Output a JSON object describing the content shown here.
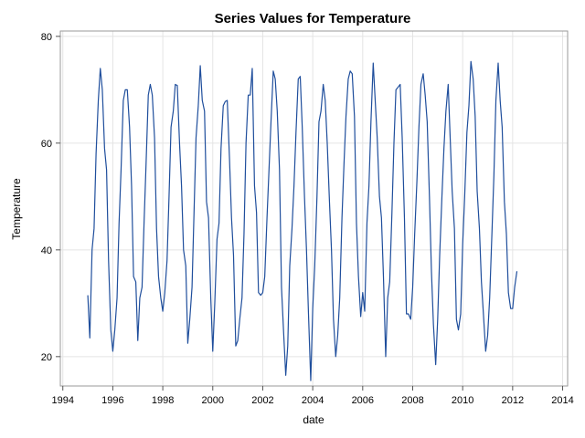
{
  "chart_data": {
    "type": "line",
    "title": "Series Values for Temperature",
    "xlabel": "date",
    "ylabel": "Temperature",
    "xlim": [
      1993.9,
      2014.2
    ],
    "ylim": [
      14.5,
      81
    ],
    "x_ticks": [
      "1994",
      "1996",
      "1998",
      "2000",
      "2002",
      "2004",
      "2006",
      "2008",
      "2010",
      "2012",
      "2014"
    ],
    "y_ticks": [
      "20",
      "40",
      "60",
      "80"
    ],
    "grid": true,
    "line_color": "#1f4e9c",
    "series": [
      {
        "x": [
          1995.0,
          1995.08,
          1995.17,
          1995.25,
          1995.33,
          1995.42,
          1995.5,
          1995.58,
          1995.67,
          1995.75,
          1995.83,
          1995.92,
          1996.0,
          1996.08,
          1996.17,
          1996.25,
          1996.33,
          1996.42,
          1996.5,
          1996.58,
          1996.67,
          1996.75,
          1996.83,
          1996.92,
          1997.0,
          1997.08,
          1997.17,
          1997.25,
          1997.33,
          1997.42,
          1997.5,
          1997.58,
          1997.67,
          1997.75,
          1997.83,
          1997.92,
          1998.0,
          1998.08,
          1998.17,
          1998.25,
          1998.33,
          1998.42,
          1998.5,
          1998.58,
          1998.67,
          1998.75,
          1998.83,
          1998.92,
          1999.0,
          1999.08,
          1999.17,
          1999.25,
          1999.33,
          1999.42,
          1999.5,
          1999.58,
          1999.67,
          1999.75,
          1999.83,
          1999.92,
          2000.0,
          2000.08,
          2000.17,
          2000.25,
          2000.33,
          2000.42,
          2000.5,
          2000.58,
          2000.67,
          2000.75,
          2000.83,
          2000.92,
          2001.0,
          2001.08,
          2001.17,
          2001.25,
          2001.33,
          2001.42,
          2001.5,
          2001.58,
          2001.67,
          2001.75,
          2001.83,
          2001.92,
          2002.0,
          2002.08,
          2002.17,
          2002.25,
          2002.33,
          2002.42,
          2002.5,
          2002.58,
          2002.67,
          2002.75,
          2002.83,
          2002.92,
          2003.0,
          2003.08,
          2003.17,
          2003.25,
          2003.33,
          2003.42,
          2003.5,
          2003.58,
          2003.67,
          2003.75,
          2003.83,
          2003.92,
          2004.0,
          2004.08,
          2004.17,
          2004.25,
          2004.33,
          2004.42,
          2004.5,
          2004.58,
          2004.67,
          2004.75,
          2004.83,
          2004.92,
          2005.0,
          2005.08,
          2005.17,
          2005.25,
          2005.33,
          2005.42,
          2005.5,
          2005.58,
          2005.67,
          2005.75,
          2005.83,
          2005.92,
          2006.0,
          2006.08,
          2006.17,
          2006.25,
          2006.33,
          2006.42,
          2006.5,
          2006.58,
          2006.67,
          2006.75,
          2006.83,
          2006.92,
          2007.0,
          2007.08,
          2007.17,
          2007.25,
          2007.33,
          2007.42,
          2007.5,
          2007.58,
          2007.67,
          2007.75,
          2007.83,
          2007.92,
          2008.0,
          2008.08,
          2008.17,
          2008.25,
          2008.33,
          2008.42,
          2008.5,
          2008.58,
          2008.67,
          2008.75,
          2008.83,
          2008.92,
          2009.0,
          2009.08,
          2009.17,
          2009.25,
          2009.33,
          2009.42,
          2009.5,
          2009.58,
          2009.67,
          2009.75,
          2009.83,
          2009.92,
          2010.0,
          2010.08,
          2010.17,
          2010.25,
          2010.33,
          2010.42,
          2010.5,
          2010.58,
          2010.67,
          2010.75,
          2010.83,
          2010.92,
          2011.0,
          2011.08,
          2011.17,
          2011.25,
          2011.33,
          2011.42,
          2011.5,
          2011.58,
          2011.67,
          2011.75,
          2011.83,
          2011.92,
          2012.0,
          2012.08,
          2012.17
        ],
        "values": [
          31.5,
          23.5,
          40,
          44,
          58,
          68,
          74,
          70,
          59,
          55,
          38,
          25,
          21,
          25,
          31,
          45,
          55,
          68,
          70,
          70,
          63,
          52,
          35,
          34,
          23,
          31,
          33,
          45,
          56,
          69,
          71,
          69,
          61,
          44,
          35,
          31,
          28.5,
          32,
          38,
          50,
          63,
          66,
          71,
          70.8,
          60,
          52,
          40,
          37,
          22.5,
          27,
          33,
          47,
          61,
          67,
          74.5,
          68,
          66,
          49,
          46,
          31,
          21,
          30,
          42,
          45,
          59,
          67,
          67.8,
          68,
          57,
          46,
          39,
          22,
          23,
          27,
          31,
          43,
          60,
          69,
          69,
          74,
          52,
          47,
          32,
          31.5,
          32,
          35,
          46,
          55,
          64,
          73.5,
          72,
          66,
          55,
          33,
          25,
          16.5,
          22,
          37,
          44,
          52,
          62,
          72,
          72.5,
          63,
          50,
          40,
          28,
          15.5,
          29,
          37,
          50,
          64,
          66,
          71,
          68,
          60,
          49,
          40,
          27,
          20,
          24,
          31,
          46,
          56,
          65,
          72,
          73.5,
          73,
          65,
          45,
          35,
          27.5,
          32,
          28.5,
          45,
          52,
          64,
          75,
          68,
          61,
          50,
          46,
          35,
          20,
          31,
          34,
          47,
          60,
          70,
          70.5,
          71,
          61,
          46,
          28,
          28,
          27,
          33,
          43,
          53,
          63,
          71,
          73,
          69,
          64,
          50,
          36,
          26,
          18.5,
          27,
          39,
          50,
          59,
          66,
          71,
          61,
          51,
          44,
          27,
          25,
          28,
          41,
          50,
          62,
          67,
          75.3,
          72,
          65,
          51,
          44,
          34,
          28,
          21,
          24,
          31,
          43,
          54,
          68,
          75,
          68,
          63,
          49,
          43,
          32,
          29,
          29,
          33,
          36
        ]
      }
    ]
  }
}
